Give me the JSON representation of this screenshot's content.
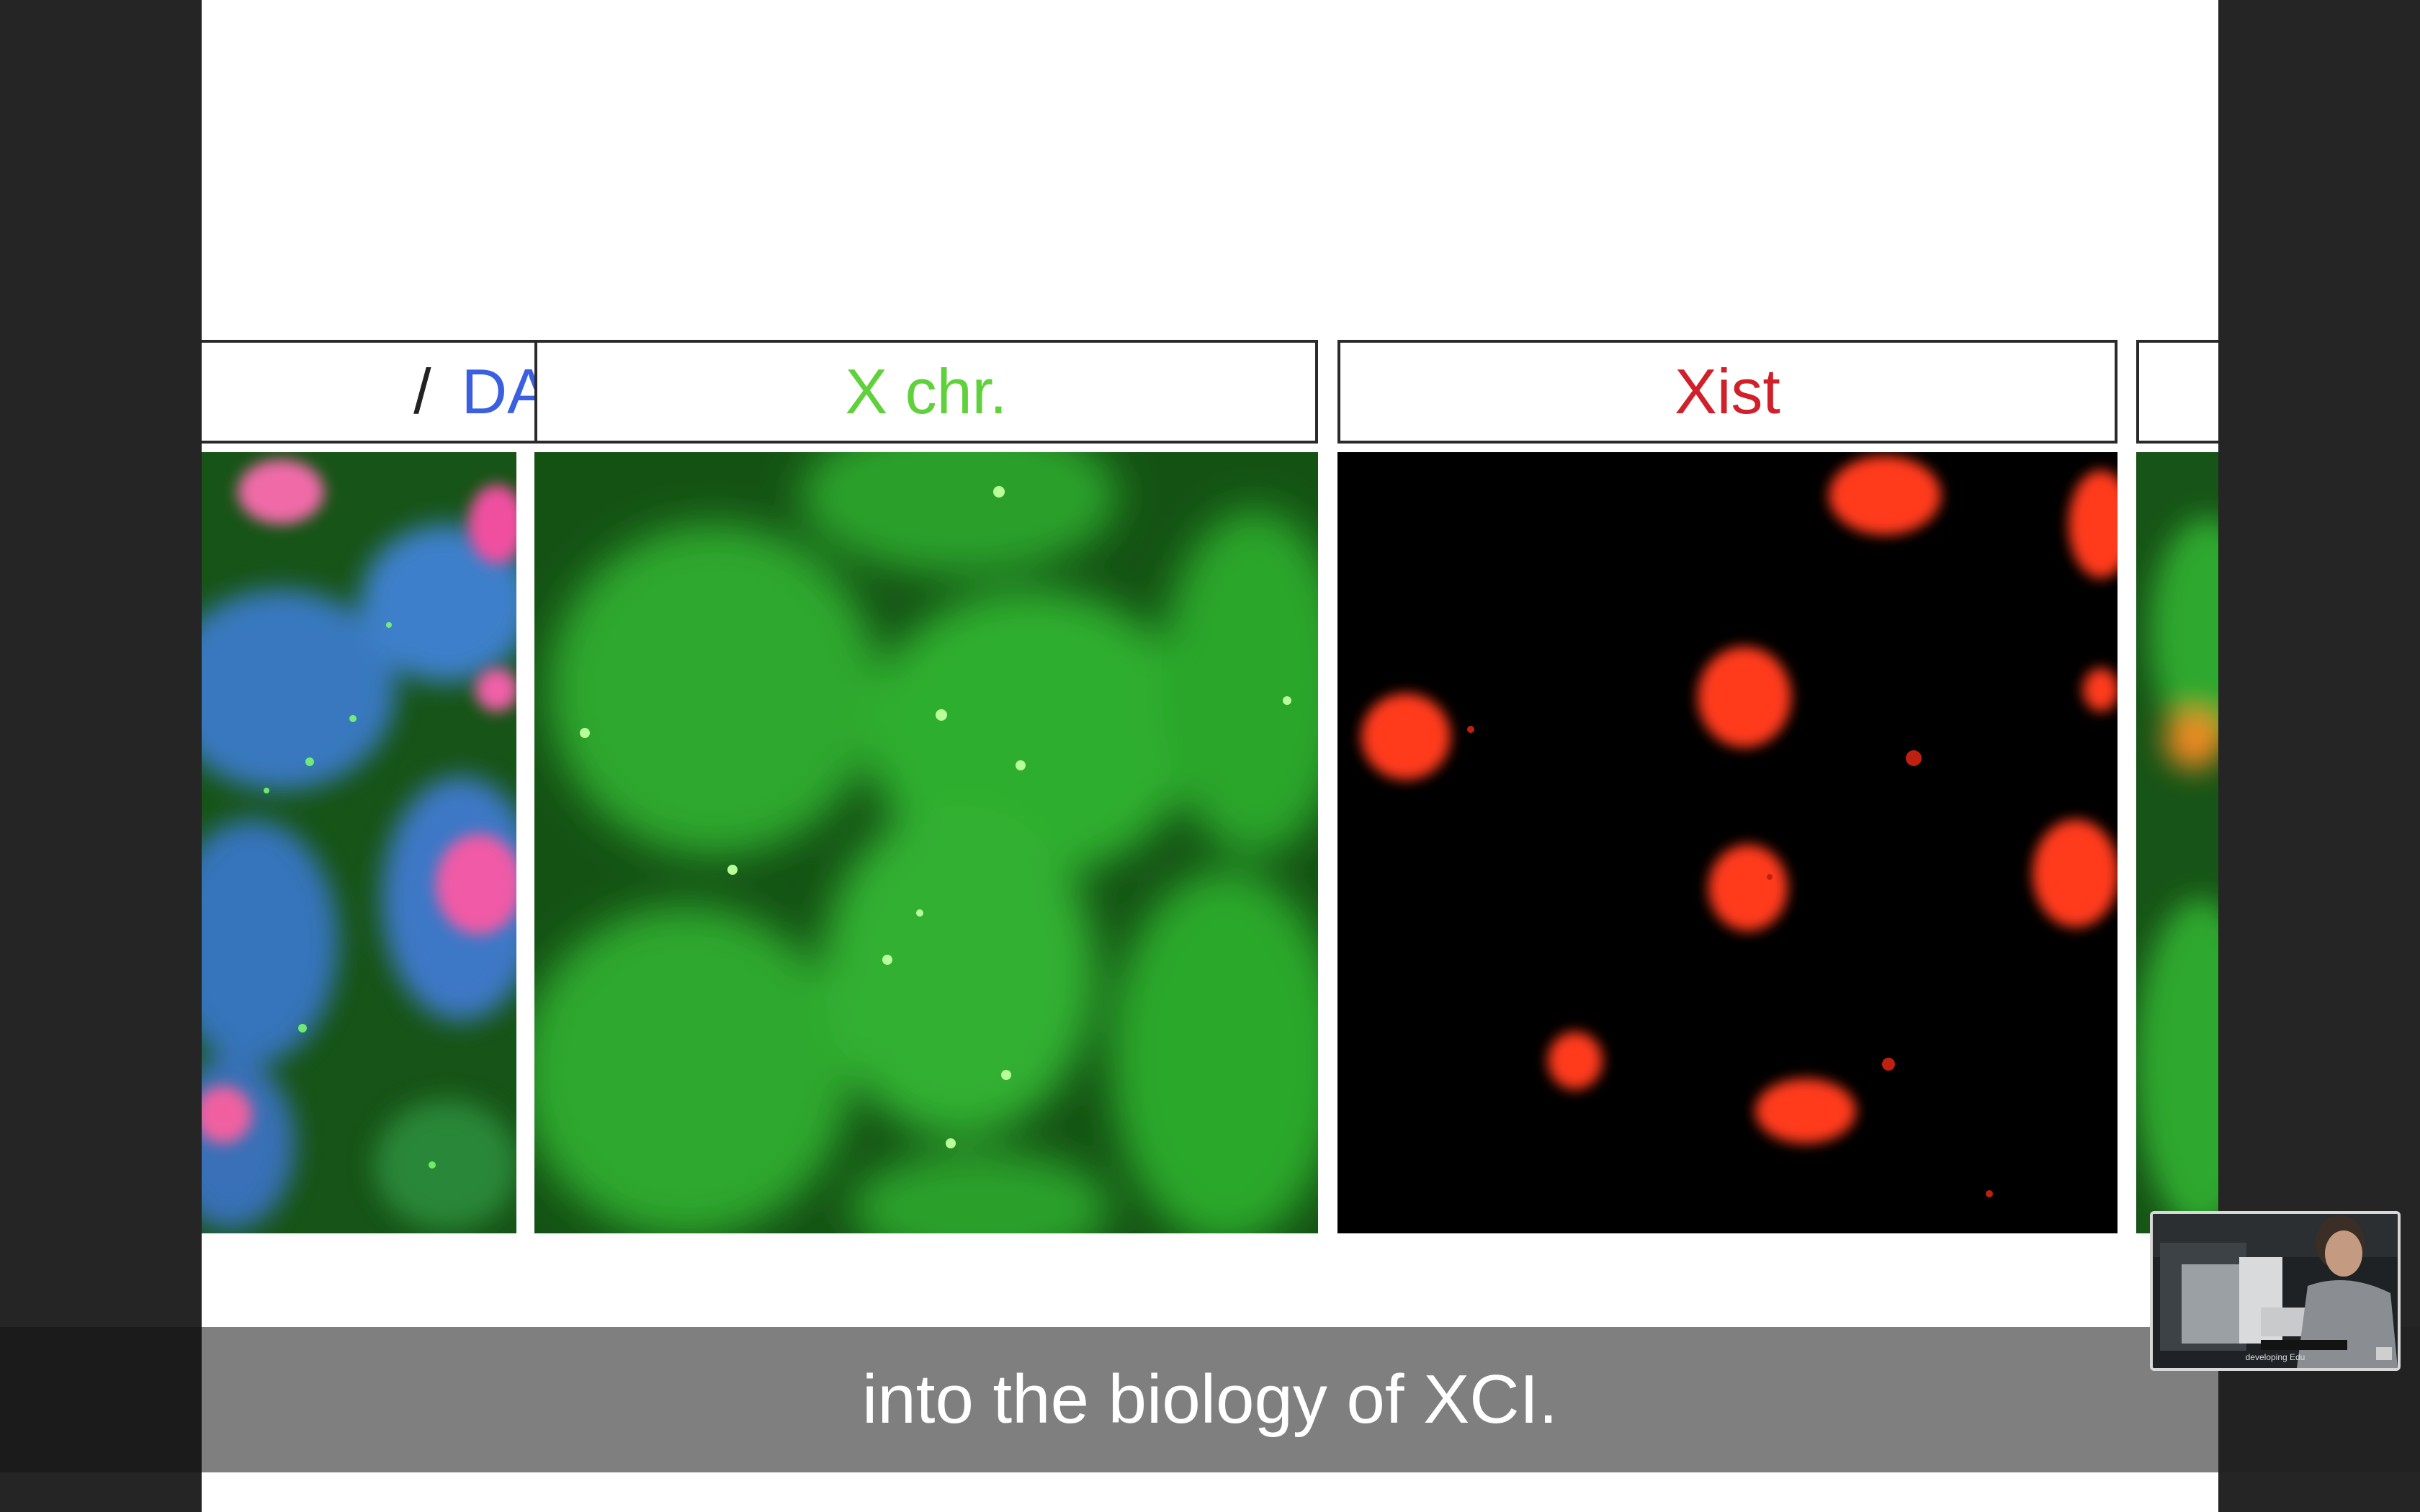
{
  "panels": {
    "merged_label_prefix": "/",
    "merged_label": "DAPI",
    "green_label": "X chr.",
    "red_label": "Xist"
  },
  "colors": {
    "dapi_label": "#3a5fe0",
    "xchr_label": "#5fd13a",
    "xist_label": "#d0202a",
    "green_channel": "#1f7a1f",
    "red_channel": "#ff3a1a"
  },
  "caption": {
    "text": "into the biology of XCI."
  },
  "pip_video": {
    "caption": "developing Edu"
  },
  "icons": {
    "pip": "video-thumbnail",
    "pip_badge": "popout-icon"
  }
}
